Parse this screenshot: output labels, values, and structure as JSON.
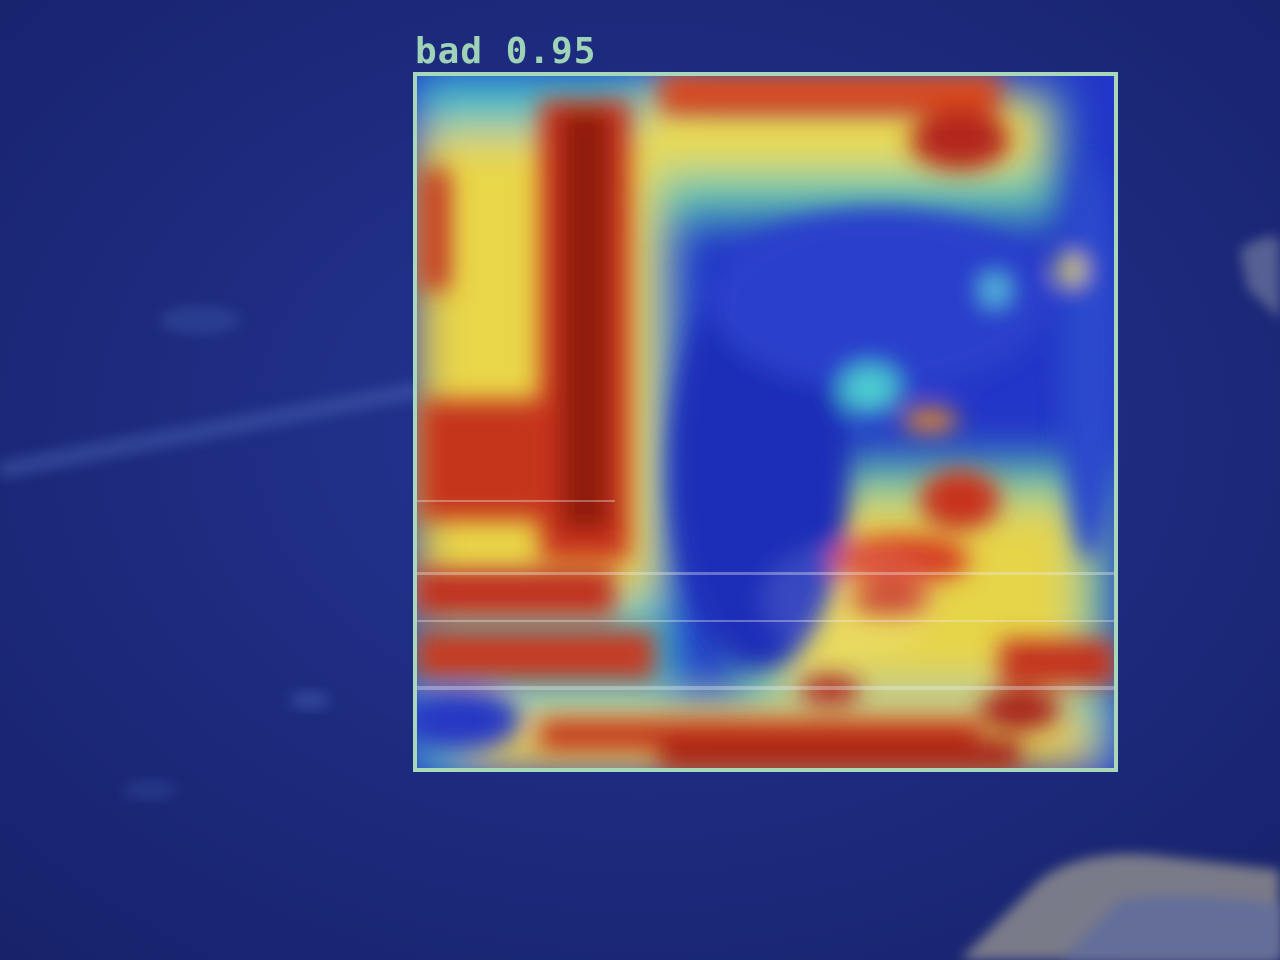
{
  "detection": {
    "label": "bad 0.95",
    "box_color": "#a8d8b9",
    "label_color": "#9fd3b8"
  },
  "background": {
    "base_color": "#1d2a78"
  },
  "heatmap": {
    "colormap": "jet",
    "colors": [
      "#1a2ecc",
      "#29b6e8",
      "#f3e64a",
      "#e2442a",
      "#9a1a12"
    ]
  }
}
